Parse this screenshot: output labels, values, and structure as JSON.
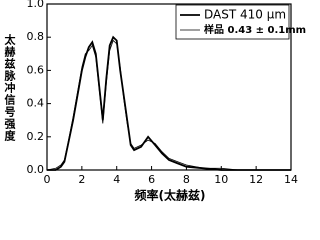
{
  "chart_data": {
    "type": "line",
    "ylabel": "太赫兹脉冲信号强度",
    "xlabel": "频率(太赫兹)",
    "x": [
      0,
      0.5,
      0.8,
      1.0,
      1.2,
      1.5,
      1.8,
      2.0,
      2.2,
      2.4,
      2.6,
      2.8,
      3.0,
      3.2,
      3.4,
      3.6,
      3.8,
      4.0,
      4.2,
      4.4,
      4.6,
      4.8,
      5.0,
      5.4,
      5.8,
      6.2,
      6.6,
      7.0,
      7.5,
      8,
      9,
      10,
      11,
      12,
      13,
      14
    ],
    "series": [
      {
        "name": "DAST 410 μm",
        "color": "#000000",
        "width": 1.8,
        "values": [
          0,
          0,
          0.02,
          0.05,
          0.15,
          0.3,
          0.48,
          0.6,
          0.68,
          0.74,
          0.77,
          0.7,
          0.5,
          0.3,
          0.55,
          0.75,
          0.8,
          0.78,
          0.6,
          0.45,
          0.3,
          0.15,
          0.12,
          0.14,
          0.2,
          0.15,
          0.1,
          0.06,
          0.04,
          0.02,
          0.01,
          0,
          0,
          0,
          0,
          0
        ]
      },
      {
        "name": "样品 0.43 ± 0.1mm",
        "color": "#000000",
        "width": 0.8,
        "values": [
          0,
          0.01,
          0.03,
          0.06,
          0.16,
          0.32,
          0.5,
          0.62,
          0.7,
          0.72,
          0.75,
          0.68,
          0.48,
          0.28,
          0.52,
          0.72,
          0.78,
          0.76,
          0.62,
          0.43,
          0.28,
          0.16,
          0.13,
          0.15,
          0.18,
          0.16,
          0.11,
          0.07,
          0.05,
          0.03,
          0.01,
          0.01,
          0,
          0,
          0,
          0
        ]
      }
    ],
    "xlim": [
      0,
      14
    ],
    "xticks": [
      0,
      2,
      4,
      6,
      8,
      10,
      12,
      14
    ],
    "ylim": [
      0,
      1
    ],
    "yticks": [
      {
        "value": 0,
        "label": "0.0"
      },
      0.2,
      0.4,
      0.6,
      0.8,
      {
        "value": 1,
        "label": "1.0"
      }
    ],
    "legend": "upper right"
  }
}
